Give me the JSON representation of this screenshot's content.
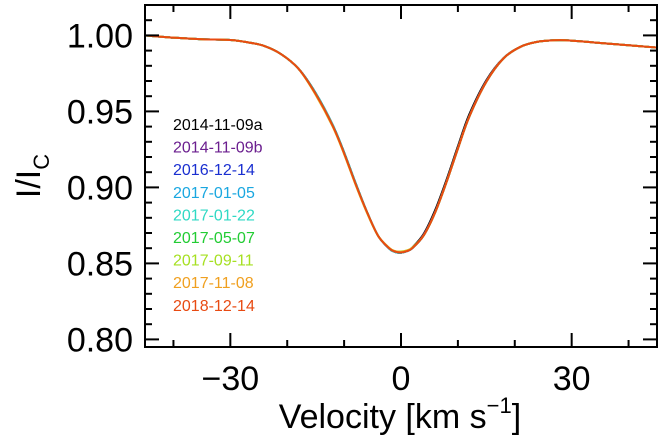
{
  "chart_data": {
    "type": "line",
    "title": "",
    "xlabel": "Velocity [km s",
    "xlabel_sup": "−1",
    "xlabel_close": "]",
    "ylabel": "I/I",
    "ylabel_sub": "C",
    "xlim": [
      -45,
      45
    ],
    "ylim": [
      0.795,
      1.02
    ],
    "xticks": [
      {
        "value": -30,
        "label": "−30"
      },
      {
        "value": 0,
        "label": "0"
      },
      {
        "value": 30,
        "label": "30"
      }
    ],
    "yticks": [
      {
        "value": 0.8,
        "label": "0.80"
      },
      {
        "value": 0.85,
        "label": "0.85"
      },
      {
        "value": 0.9,
        "label": "0.90"
      },
      {
        "value": 0.95,
        "label": "0.95"
      },
      {
        "value": 1.0,
        "label": "1.00"
      }
    ],
    "grid": false,
    "legend_position": "left",
    "x": [
      -45,
      -40,
      -35,
      -30,
      -27,
      -24,
      -21,
      -18,
      -15,
      -12,
      -10,
      -8,
      -6,
      -4,
      -2,
      -1,
      0,
      1,
      2,
      4,
      6,
      8,
      10,
      12,
      15,
      18,
      21,
      24,
      27,
      30,
      35,
      40,
      45
    ],
    "series": [
      {
        "name": "2014-11-09a",
        "color": "#000000",
        "values": [
          1.0,
          0.9985,
          0.9975,
          0.997,
          0.9955,
          0.993,
          0.9875,
          0.978,
          0.962,
          0.941,
          0.923,
          0.903,
          0.884,
          0.868,
          0.8595,
          0.8575,
          0.857,
          0.858,
          0.8605,
          0.8695,
          0.885,
          0.905,
          0.927,
          0.948,
          0.9705,
          0.985,
          0.9925,
          0.9958,
          0.9968,
          0.9966,
          0.995,
          0.9935,
          0.992
        ]
      },
      {
        "name": "2014-11-09b",
        "color": "#6b1f8f",
        "values": [
          1.0,
          0.9985,
          0.9975,
          0.997,
          0.9955,
          0.993,
          0.9875,
          0.978,
          0.962,
          0.941,
          0.923,
          0.903,
          0.884,
          0.868,
          0.8595,
          0.8575,
          0.857,
          0.858,
          0.86,
          0.869,
          0.884,
          0.904,
          0.926,
          0.947,
          0.97,
          0.985,
          0.9925,
          0.9958,
          0.9968,
          0.9966,
          0.995,
          0.9935,
          0.992
        ]
      },
      {
        "name": "2016-12-14",
        "color": "#1a2fd0",
        "values": [
          1.0,
          0.9985,
          0.9975,
          0.997,
          0.9955,
          0.993,
          0.9875,
          0.978,
          0.962,
          0.941,
          0.923,
          0.903,
          0.884,
          0.868,
          0.8595,
          0.8575,
          0.857,
          0.858,
          0.86,
          0.8685,
          0.8835,
          0.9035,
          0.9255,
          0.9465,
          0.9695,
          0.9848,
          0.9925,
          0.9958,
          0.9968,
          0.9966,
          0.995,
          0.9935,
          0.992
        ]
      },
      {
        "name": "2017-01-05",
        "color": "#1aa7e0",
        "values": [
          1.0,
          0.9985,
          0.9975,
          0.997,
          0.9955,
          0.993,
          0.9875,
          0.978,
          0.962,
          0.941,
          0.923,
          0.903,
          0.884,
          0.868,
          0.8595,
          0.8575,
          0.857,
          0.858,
          0.86,
          0.8685,
          0.8835,
          0.9035,
          0.9255,
          0.9465,
          0.9695,
          0.9848,
          0.9925,
          0.9958,
          0.9968,
          0.9966,
          0.995,
          0.9935,
          0.992
        ]
      },
      {
        "name": "2017-01-22",
        "color": "#2fd9c4",
        "values": [
          1.0,
          0.9985,
          0.9975,
          0.997,
          0.9955,
          0.993,
          0.9875,
          0.978,
          0.962,
          0.941,
          0.923,
          0.903,
          0.884,
          0.868,
          0.8595,
          0.8575,
          0.857,
          0.858,
          0.86,
          0.8685,
          0.8835,
          0.9035,
          0.9255,
          0.9465,
          0.9695,
          0.9848,
          0.9925,
          0.9958,
          0.9968,
          0.9966,
          0.995,
          0.9935,
          0.992
        ]
      },
      {
        "name": "2017-05-07",
        "color": "#22cc33",
        "values": [
          1.0,
          0.9985,
          0.9975,
          0.997,
          0.9955,
          0.993,
          0.9875,
          0.978,
          0.9615,
          0.9405,
          0.9225,
          0.9025,
          0.884,
          0.868,
          0.8598,
          0.8578,
          0.8573,
          0.8582,
          0.8602,
          0.8685,
          0.8835,
          0.9035,
          0.9255,
          0.9465,
          0.9695,
          0.9848,
          0.9925,
          0.9958,
          0.9968,
          0.9966,
          0.995,
          0.9935,
          0.992
        ]
      },
      {
        "name": "2017-09-11",
        "color": "#a6e022",
        "values": [
          1.0,
          0.9985,
          0.9975,
          0.997,
          0.9955,
          0.993,
          0.9875,
          0.978,
          0.961,
          0.94,
          0.922,
          0.902,
          0.8835,
          0.868,
          0.86,
          0.858,
          0.8578,
          0.8585,
          0.8605,
          0.8685,
          0.8835,
          0.9035,
          0.9255,
          0.9465,
          0.9695,
          0.9848,
          0.9925,
          0.9958,
          0.9968,
          0.9966,
          0.995,
          0.9935,
          0.992
        ]
      },
      {
        "name": "2017-11-08",
        "color": "#f0a020",
        "values": [
          1.0,
          0.9985,
          0.9975,
          0.997,
          0.9955,
          0.993,
          0.9875,
          0.978,
          0.961,
          0.94,
          0.922,
          0.902,
          0.8835,
          0.868,
          0.86,
          0.858,
          0.8576,
          0.8584,
          0.8603,
          0.8685,
          0.8835,
          0.9035,
          0.9255,
          0.9465,
          0.9695,
          0.9848,
          0.9925,
          0.9958,
          0.9968,
          0.9966,
          0.995,
          0.9935,
          0.992
        ]
      },
      {
        "name": "2018-12-14",
        "color": "#e84a12",
        "values": [
          1.0,
          0.9985,
          0.9975,
          0.997,
          0.9955,
          0.993,
          0.9875,
          0.978,
          0.9615,
          0.9405,
          0.9225,
          0.9025,
          0.884,
          0.868,
          0.8597,
          0.8577,
          0.8572,
          0.858,
          0.86,
          0.8685,
          0.8835,
          0.9035,
          0.9255,
          0.9465,
          0.9695,
          0.9848,
          0.9925,
          0.9958,
          0.9968,
          0.9966,
          0.995,
          0.9935,
          0.992
        ]
      }
    ]
  }
}
